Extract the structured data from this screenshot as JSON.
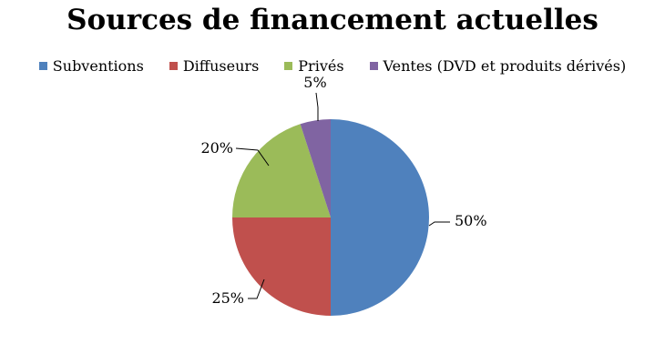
{
  "chart_data": {
    "type": "pie",
    "title": "Sources de financement actuelles",
    "legend_position": "top",
    "slices": [
      {
        "label": "Subventions",
        "value": 50,
        "data_label": "50%",
        "color": "#4F81BD"
      },
      {
        "label": "Diffuseurs",
        "value": 25,
        "data_label": "25%",
        "color": "#C0504D"
      },
      {
        "label": "Privés",
        "value": 20,
        "data_label": "20%",
        "color": "#9BBB59"
      },
      {
        "label": "Ventes (DVD et produits dérivés)",
        "value": 5,
        "data_label": "5%",
        "color": "#8064A2"
      }
    ]
  }
}
